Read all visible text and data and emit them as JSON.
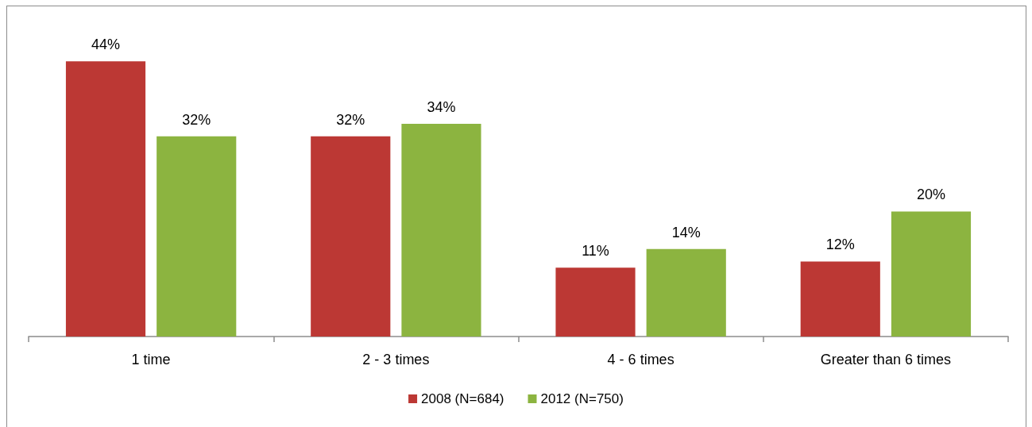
{
  "chart_data": {
    "type": "bar",
    "categories": [
      "1 time",
      "2 - 3 times",
      "4 - 6 times",
      "Greater than 6 times"
    ],
    "series": [
      {
        "name": "2008 (N=684)",
        "color": "#bc3834",
        "values": [
          44,
          32,
          11,
          12
        ],
        "value_labels": [
          "44%",
          "32%",
          "11%",
          "12%"
        ]
      },
      {
        "name": "2012 (N=750)",
        "color": "#8cb440",
        "values": [
          32,
          34,
          14,
          20
        ],
        "value_labels": [
          "32%",
          "34%",
          "14%",
          "20%"
        ]
      }
    ],
    "legend": "bottom",
    "grid": false,
    "tick_labels": "x"
  }
}
